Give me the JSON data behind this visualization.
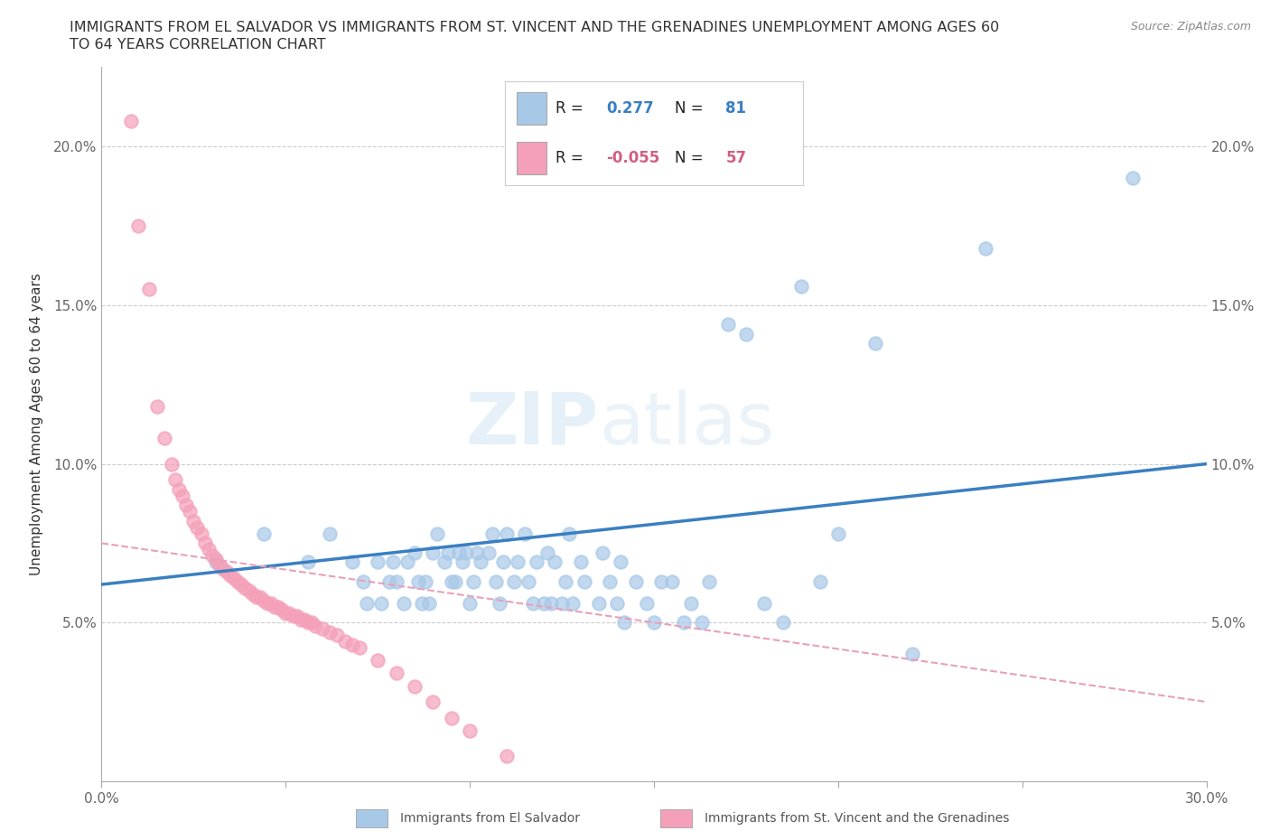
{
  "title_line1": "IMMIGRANTS FROM EL SALVADOR VS IMMIGRANTS FROM ST. VINCENT AND THE GRENADINES UNEMPLOYMENT AMONG AGES 60",
  "title_line2": "TO 64 YEARS CORRELATION CHART",
  "source_text": "Source: ZipAtlas.com",
  "ylabel": "Unemployment Among Ages 60 to 64 years",
  "xlim": [
    0.0,
    0.3
  ],
  "ylim": [
    0.0,
    0.225
  ],
  "x_ticks": [
    0.0,
    0.05,
    0.1,
    0.15,
    0.2,
    0.25,
    0.3
  ],
  "y_ticks": [
    0.0,
    0.05,
    0.1,
    0.15,
    0.2
  ],
  "watermark": "ZIPatlas",
  "blue_color": "#a8c8e8",
  "pink_color": "#f4a0b8",
  "blue_line_color": "#3a7fc1",
  "pink_line_color": "#e8a0b8",
  "blue_scatter": [
    [
      0.031,
      0.069
    ],
    [
      0.044,
      0.078
    ],
    [
      0.056,
      0.069
    ],
    [
      0.062,
      0.078
    ],
    [
      0.068,
      0.069
    ],
    [
      0.071,
      0.063
    ],
    [
      0.072,
      0.056
    ],
    [
      0.075,
      0.069
    ],
    [
      0.076,
      0.056
    ],
    [
      0.078,
      0.063
    ],
    [
      0.079,
      0.069
    ],
    [
      0.08,
      0.063
    ],
    [
      0.082,
      0.056
    ],
    [
      0.083,
      0.069
    ],
    [
      0.085,
      0.072
    ],
    [
      0.086,
      0.063
    ],
    [
      0.087,
      0.056
    ],
    [
      0.088,
      0.063
    ],
    [
      0.089,
      0.056
    ],
    [
      0.09,
      0.072
    ],
    [
      0.091,
      0.078
    ],
    [
      0.093,
      0.069
    ],
    [
      0.094,
      0.072
    ],
    [
      0.095,
      0.063
    ],
    [
      0.096,
      0.063
    ],
    [
      0.097,
      0.072
    ],
    [
      0.098,
      0.069
    ],
    [
      0.099,
      0.072
    ],
    [
      0.1,
      0.056
    ],
    [
      0.101,
      0.063
    ],
    [
      0.102,
      0.072
    ],
    [
      0.103,
      0.069
    ],
    [
      0.105,
      0.072
    ],
    [
      0.106,
      0.078
    ],
    [
      0.107,
      0.063
    ],
    [
      0.108,
      0.056
    ],
    [
      0.109,
      0.069
    ],
    [
      0.11,
      0.078
    ],
    [
      0.112,
      0.063
    ],
    [
      0.113,
      0.069
    ],
    [
      0.115,
      0.078
    ],
    [
      0.116,
      0.063
    ],
    [
      0.117,
      0.056
    ],
    [
      0.118,
      0.069
    ],
    [
      0.12,
      0.056
    ],
    [
      0.121,
      0.072
    ],
    [
      0.122,
      0.056
    ],
    [
      0.123,
      0.069
    ],
    [
      0.125,
      0.056
    ],
    [
      0.126,
      0.063
    ],
    [
      0.127,
      0.078
    ],
    [
      0.128,
      0.056
    ],
    [
      0.13,
      0.069
    ],
    [
      0.131,
      0.063
    ],
    [
      0.135,
      0.056
    ],
    [
      0.136,
      0.072
    ],
    [
      0.138,
      0.063
    ],
    [
      0.14,
      0.056
    ],
    [
      0.141,
      0.069
    ],
    [
      0.142,
      0.05
    ],
    [
      0.145,
      0.063
    ],
    [
      0.148,
      0.056
    ],
    [
      0.15,
      0.05
    ],
    [
      0.152,
      0.063
    ],
    [
      0.155,
      0.063
    ],
    [
      0.158,
      0.05
    ],
    [
      0.16,
      0.056
    ],
    [
      0.163,
      0.05
    ],
    [
      0.165,
      0.063
    ],
    [
      0.17,
      0.144
    ],
    [
      0.175,
      0.141
    ],
    [
      0.18,
      0.056
    ],
    [
      0.185,
      0.05
    ],
    [
      0.19,
      0.156
    ],
    [
      0.195,
      0.063
    ],
    [
      0.2,
      0.078
    ],
    [
      0.21,
      0.138
    ],
    [
      0.22,
      0.04
    ],
    [
      0.24,
      0.168
    ],
    [
      0.28,
      0.19
    ]
  ],
  "pink_scatter": [
    [
      0.008,
      0.208
    ],
    [
      0.01,
      0.175
    ],
    [
      0.013,
      0.155
    ],
    [
      0.015,
      0.118
    ],
    [
      0.017,
      0.108
    ],
    [
      0.019,
      0.1
    ],
    [
      0.02,
      0.095
    ],
    [
      0.021,
      0.092
    ],
    [
      0.022,
      0.09
    ],
    [
      0.023,
      0.087
    ],
    [
      0.024,
      0.085
    ],
    [
      0.025,
      0.082
    ],
    [
      0.026,
      0.08
    ],
    [
      0.027,
      0.078
    ],
    [
      0.028,
      0.075
    ],
    [
      0.029,
      0.073
    ],
    [
      0.03,
      0.071
    ],
    [
      0.031,
      0.07
    ],
    [
      0.032,
      0.068
    ],
    [
      0.033,
      0.067
    ],
    [
      0.034,
      0.066
    ],
    [
      0.035,
      0.065
    ],
    [
      0.036,
      0.064
    ],
    [
      0.037,
      0.063
    ],
    [
      0.038,
      0.062
    ],
    [
      0.039,
      0.061
    ],
    [
      0.04,
      0.06
    ],
    [
      0.041,
      0.059
    ],
    [
      0.042,
      0.058
    ],
    [
      0.043,
      0.058
    ],
    [
      0.044,
      0.057
    ],
    [
      0.045,
      0.056
    ],
    [
      0.046,
      0.056
    ],
    [
      0.047,
      0.055
    ],
    [
      0.048,
      0.055
    ],
    [
      0.049,
      0.054
    ],
    [
      0.05,
      0.053
    ],
    [
      0.051,
      0.053
    ],
    [
      0.052,
      0.052
    ],
    [
      0.053,
      0.052
    ],
    [
      0.054,
      0.051
    ],
    [
      0.055,
      0.051
    ],
    [
      0.056,
      0.05
    ],
    [
      0.057,
      0.05
    ],
    [
      0.058,
      0.049
    ],
    [
      0.06,
      0.048
    ],
    [
      0.062,
      0.047
    ],
    [
      0.064,
      0.046
    ],
    [
      0.066,
      0.044
    ],
    [
      0.068,
      0.043
    ],
    [
      0.07,
      0.042
    ],
    [
      0.075,
      0.038
    ],
    [
      0.08,
      0.034
    ],
    [
      0.085,
      0.03
    ],
    [
      0.09,
      0.025
    ],
    [
      0.095,
      0.02
    ],
    [
      0.1,
      0.016
    ],
    [
      0.11,
      0.008
    ]
  ],
  "blue_trend": [
    0.0,
    0.062,
    0.3,
    0.1
  ],
  "pink_trend": [
    0.0,
    0.075,
    0.3,
    0.025
  ],
  "legend_blue_r": "0.277",
  "legend_blue_n": "81",
  "legend_pink_r": "-0.055",
  "legend_pink_n": "57"
}
